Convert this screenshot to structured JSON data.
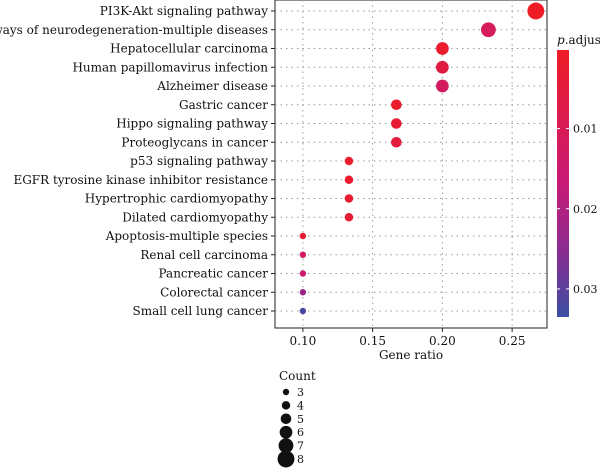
{
  "chart_data": {
    "type": "scatter",
    "subtype": "dot-plot",
    "title": "",
    "xlabel": "Gene ratio",
    "ylabel": "",
    "xlim": [
      0.08,
      0.275
    ],
    "xticks": [
      0.1,
      0.15,
      0.2,
      0.25
    ],
    "xtick_labels": [
      "0.10",
      "0.15",
      "0.20",
      "0.25"
    ],
    "grid": true,
    "categories": [
      "PI3K-Akt signaling pathway",
      "Pathways of neurodegeneration-multiple diseases",
      "Hepatocellular carcinoma",
      "Human papillomavirus infection",
      "Alzheimer disease",
      "Gastric cancer",
      "Hippo signaling pathway",
      "Proteoglycans in cancer",
      "p53 signaling pathway",
      "EGFR tyrosine kinase inhibitor resistance",
      "Hypertrophic cardiomyopathy",
      "Dilated cardiomyopathy",
      "Apoptosis-multiple species",
      "Renal cell carcinoma",
      "Pancreatic cancer",
      "Colorectal cancer",
      "Small cell lung cancer"
    ],
    "points": [
      {
        "term": "PI3K-Akt signaling pathway",
        "gene_ratio": 0.267,
        "count": 8,
        "p_adjust": 0.0002
      },
      {
        "term": "Pathways of neurodegeneration-multiple diseases",
        "gene_ratio": 0.233,
        "count": 7,
        "p_adjust": 0.011
      },
      {
        "term": "Hepatocellular carcinoma",
        "gene_ratio": 0.2,
        "count": 6,
        "p_adjust": 0.002
      },
      {
        "term": "Human papillomavirus infection",
        "gene_ratio": 0.2,
        "count": 6,
        "p_adjust": 0.006
      },
      {
        "term": "Alzheimer disease",
        "gene_ratio": 0.2,
        "count": 6,
        "p_adjust": 0.012
      },
      {
        "term": "Gastric cancer",
        "gene_ratio": 0.167,
        "count": 5,
        "p_adjust": 0.002
      },
      {
        "term": "Hippo signaling pathway",
        "gene_ratio": 0.167,
        "count": 5,
        "p_adjust": 0.003
      },
      {
        "term": "Proteoglycans in cancer",
        "gene_ratio": 0.167,
        "count": 5,
        "p_adjust": 0.005
      },
      {
        "term": "p53 signaling pathway",
        "gene_ratio": 0.133,
        "count": 4,
        "p_adjust": 0.002
      },
      {
        "term": "EGFR tyrosine kinase inhibitor resistance",
        "gene_ratio": 0.133,
        "count": 4,
        "p_adjust": 0.002
      },
      {
        "term": "Hypertrophic cardiomyopathy",
        "gene_ratio": 0.133,
        "count": 4,
        "p_adjust": 0.003
      },
      {
        "term": "Dilated cardiomyopathy",
        "gene_ratio": 0.133,
        "count": 4,
        "p_adjust": 0.003
      },
      {
        "term": "Apoptosis-multiple species",
        "gene_ratio": 0.1,
        "count": 3,
        "p_adjust": 0.003
      },
      {
        "term": "Renal cell carcinoma",
        "gene_ratio": 0.1,
        "count": 3,
        "p_adjust": 0.013
      },
      {
        "term": "Pancreatic cancer",
        "gene_ratio": 0.1,
        "count": 3,
        "p_adjust": 0.015
      },
      {
        "term": "Colorectal cancer",
        "gene_ratio": 0.1,
        "count": 3,
        "p_adjust": 0.023
      },
      {
        "term": "Small cell lung cancer",
        "gene_ratio": 0.1,
        "count": 3,
        "p_adjust": 0.032
      }
    ],
    "color_legend": {
      "title_italic": "p",
      "title_rest": ".adjust",
      "range": [
        0.0002,
        0.0335
      ],
      "ticks": [
        0.01,
        0.02,
        0.03
      ],
      "tick_labels": [
        "0.01",
        "0.02",
        "0.03"
      ],
      "low_color": "#ee1c25",
      "high_color": "#3c4fa4"
    },
    "size_legend": {
      "title": "Count",
      "values": [
        3,
        4,
        5,
        6,
        7,
        8
      ],
      "labels": [
        "3",
        "4",
        "5",
        "6",
        "7",
        "8"
      ]
    }
  }
}
